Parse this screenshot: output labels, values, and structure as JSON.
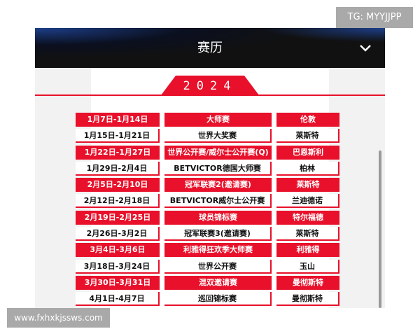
{
  "watermark_top": "TG: MYYJJPP",
  "watermark_bottom": "www.fxhxkjssws.com",
  "header": {
    "title": "赛历",
    "toggle_icon": "chevron-down-icon"
  },
  "year": "2024",
  "accent": "#e8102a",
  "schedule": [
    {
      "date": "1月7日-1月14日",
      "event": "大师赛",
      "location": "伦敦",
      "highlight": true
    },
    {
      "date": "1月15日-1月21日",
      "event": "世界大奖赛",
      "location": "莱斯特",
      "highlight": false
    },
    {
      "date": "1月22日-1月27日",
      "event": "世界公开赛/威尔士公开赛(Q)",
      "location": "巴恩斯利",
      "highlight": true
    },
    {
      "date": "1月29日-2月4日",
      "event": "BETVICTOR德国大师赛",
      "location": "柏林",
      "highlight": false
    },
    {
      "date": "2月5日-2月10日",
      "event": "冠军联赛2(邀请赛)",
      "location": "莱斯特",
      "highlight": true
    },
    {
      "date": "2月12日-2月18日",
      "event": "BETVICTOR威尔士公开赛",
      "location": "兰迪德诺",
      "highlight": false
    },
    {
      "date": "2月19日-2月25日",
      "event": "球员锦标赛",
      "location": "特尔福德",
      "highlight": true
    },
    {
      "date": "2月26日-3月2日",
      "event": "冠军联赛3(邀请赛)",
      "location": "莱斯特",
      "highlight": false
    },
    {
      "date": "3月4日-3月6日",
      "event": "利雅得狂欢季大师赛",
      "location": "利雅得",
      "highlight": true
    },
    {
      "date": "3月18日-3月24日",
      "event": "世界公开赛",
      "location": "玉山",
      "highlight": false
    },
    {
      "date": "3月30日-3月31日",
      "event": "混双邀请赛",
      "location": "曼彻斯特",
      "highlight": true
    },
    {
      "date": "4月1日-4月7日",
      "event": "巡回锦标赛",
      "location": "曼彻斯特",
      "highlight": false
    }
  ]
}
